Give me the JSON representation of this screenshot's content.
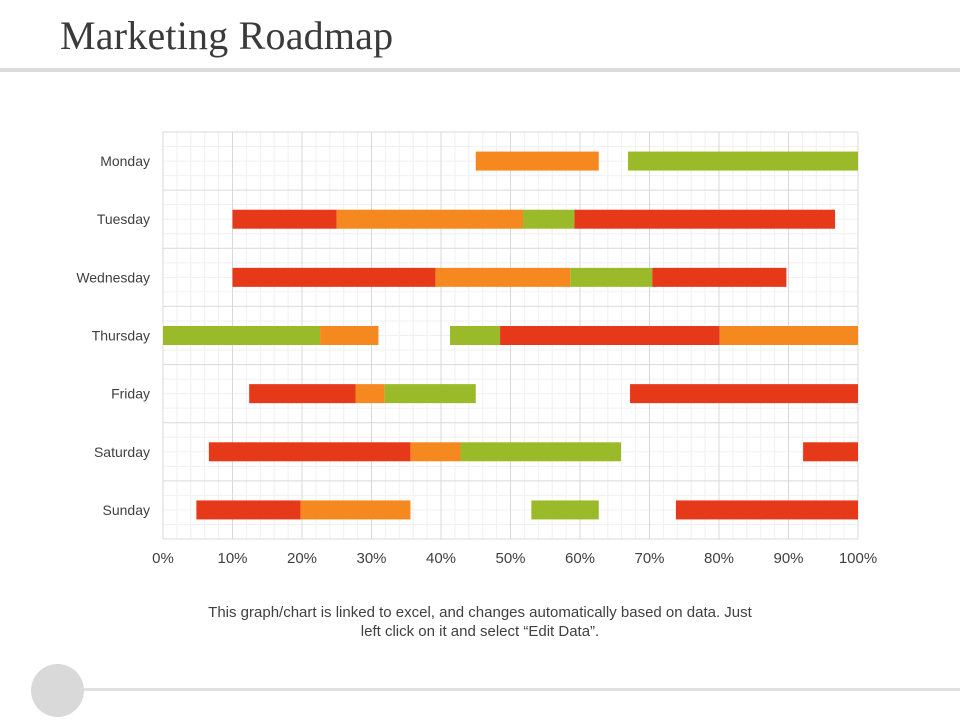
{
  "page": {
    "title": "Marketing Roadmap",
    "note_line1": "This graph/chart is linked to excel, and changes automatically based on data. Just",
    "note_line2": "left click on it and select “Edit Data”."
  },
  "colors": {
    "red": "#e5391a",
    "orange": "#f5881f",
    "green": "#9bba2a",
    "gap": "transparent"
  },
  "chart_data": {
    "type": "bar",
    "orientation": "horizontal",
    "stacked": true,
    "categories": [
      "Monday",
      "Tuesday",
      "Wednesday",
      "Thursday",
      "Friday",
      "Saturday",
      "Sunday"
    ],
    "xlim": [
      0,
      100
    ],
    "x_ticks": [
      "0%",
      "10%",
      "20%",
      "30%",
      "40%",
      "50%",
      "60%",
      "70%",
      "80%",
      "90%",
      "100%"
    ],
    "grid": true,
    "legend": "none",
    "rows": [
      {
        "category": "Monday",
        "segments": [
          {
            "color": "gap",
            "value": 45
          },
          {
            "color": "orange",
            "value": 17.7
          },
          {
            "color": "gap",
            "value": 4.2
          },
          {
            "color": "green",
            "value": 33.1
          }
        ]
      },
      {
        "category": "Tuesday",
        "segments": [
          {
            "color": "gap",
            "value": 10
          },
          {
            "color": "red",
            "value": 15
          },
          {
            "color": "orange",
            "value": 26.8
          },
          {
            "color": "green",
            "value": 7.4
          },
          {
            "color": "red",
            "value": 37.5
          },
          {
            "color": "gap",
            "value": 3.3
          }
        ]
      },
      {
        "category": "Wednesday",
        "segments": [
          {
            "color": "gap",
            "value": 10
          },
          {
            "color": "red",
            "value": 29.2
          },
          {
            "color": "orange",
            "value": 19.4
          },
          {
            "color": "green",
            "value": 11.8
          },
          {
            "color": "red",
            "value": 19.3
          },
          {
            "color": "gap",
            "value": 10.3
          }
        ]
      },
      {
        "category": "Thursday",
        "segments": [
          {
            "color": "green",
            "value": 22.6
          },
          {
            "color": "orange",
            "value": 8.4
          },
          {
            "color": "gap",
            "value": 10.3
          },
          {
            "color": "green",
            "value": 7.2
          },
          {
            "color": "red",
            "value": 31.6
          },
          {
            "color": "orange",
            "value": 19.9
          }
        ]
      },
      {
        "category": "Friday",
        "segments": [
          {
            "color": "gap",
            "value": 12.4
          },
          {
            "color": "red",
            "value": 15.3
          },
          {
            "color": "orange",
            "value": 4.2
          },
          {
            "color": "green",
            "value": 13.1
          },
          {
            "color": "gap",
            "value": 22.2
          },
          {
            "color": "red",
            "value": 32.8
          }
        ]
      },
      {
        "category": "Saturday",
        "segments": [
          {
            "color": "gap",
            "value": 6.6
          },
          {
            "color": "red",
            "value": 29
          },
          {
            "color": "orange",
            "value": 7.2
          },
          {
            "color": "green",
            "value": 23.1
          },
          {
            "color": "gap",
            "value": 26.2
          },
          {
            "color": "red",
            "value": 7.9
          }
        ]
      },
      {
        "category": "Sunday",
        "segments": [
          {
            "color": "gap",
            "value": 4.8
          },
          {
            "color": "red",
            "value": 15
          },
          {
            "color": "orange",
            "value": 15.8
          },
          {
            "color": "gap",
            "value": 17.4
          },
          {
            "color": "green",
            "value": 9.7
          },
          {
            "color": "gap",
            "value": 11.1
          },
          {
            "color": "red",
            "value": 26.2
          }
        ]
      }
    ]
  }
}
